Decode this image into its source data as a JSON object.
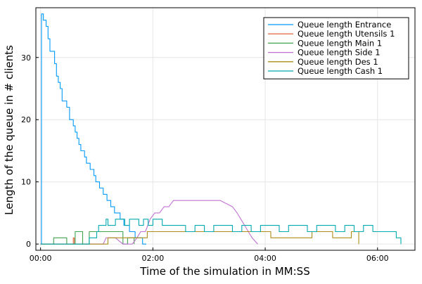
{
  "chart_data": {
    "type": "line",
    "title": "",
    "xlabel": "Time of the simulation in MM:SS",
    "ylabel": "Length of the queue in # clients",
    "x_unit": "seconds",
    "xlim": [
      -5,
      400
    ],
    "ylim": [
      -1,
      38
    ],
    "x_ticks": [
      {
        "value": 0,
        "label": "00:00"
      },
      {
        "value": 120,
        "label": "02:00"
      },
      {
        "value": 240,
        "label": "04:00"
      },
      {
        "value": 360,
        "label": "06:00"
      }
    ],
    "y_ticks": [
      {
        "value": 0,
        "label": "0"
      },
      {
        "value": 10,
        "label": "10"
      },
      {
        "value": 20,
        "label": "20"
      },
      {
        "value": 30,
        "label": "30"
      }
    ],
    "grid": true,
    "legend_position": "top-right",
    "series": [
      {
        "name": "Queue length Entrance",
        "color": "#009AFA",
        "step": true,
        "x": [
          0,
          1,
          3,
          6,
          8,
          10,
          13,
          15,
          17,
          19,
          21,
          23,
          25,
          28,
          31,
          33,
          35,
          37,
          39,
          41,
          43,
          45,
          47,
          49,
          51,
          53,
          55,
          57,
          59,
          61,
          63,
          65,
          67,
          69,
          71,
          73,
          75,
          77,
          79,
          81,
          83,
          85,
          87,
          89,
          91,
          93,
          95,
          97,
          99,
          101,
          103,
          105,
          107,
          109,
          111,
          113
        ],
        "y": [
          0,
          37,
          36,
          35,
          33,
          31,
          31,
          29,
          27,
          26,
          25,
          23,
          23,
          22,
          20,
          20,
          19,
          18,
          17,
          16,
          15,
          15,
          14,
          13,
          13,
          12,
          12,
          11,
          10,
          10,
          9,
          9,
          8,
          8,
          7,
          7,
          6,
          6,
          5,
          5,
          5,
          4,
          4,
          3,
          3,
          3,
          2,
          2,
          2,
          1,
          1,
          1,
          1,
          0,
          0,
          0
        ]
      },
      {
        "name": "Queue length Utensils 1",
        "color": "#E36F47",
        "step": true,
        "x": [
          0,
          35,
          36
        ],
        "y": [
          0,
          1,
          0
        ]
      },
      {
        "name": "Queue length Main 1",
        "color": "#3EA44E",
        "step": true,
        "x": [
          0,
          12,
          14,
          26,
          28,
          35,
          37,
          43,
          45,
          47,
          52,
          54,
          88,
          90,
          93,
          95,
          100
        ],
        "y": [
          0,
          0,
          1,
          1,
          0,
          0,
          2,
          2,
          0,
          0,
          2,
          2,
          0,
          0,
          1,
          1,
          0
        ]
      },
      {
        "name": "Queue length Side 1",
        "color": "#C271D2",
        "step": false,
        "x": [
          0,
          67,
          70,
          80,
          88,
          93,
          98,
          103,
          107,
          112,
          117,
          122,
          127,
          132,
          137,
          142,
          150,
          170,
          180,
          192,
          205,
          210,
          214,
          218,
          222,
          226,
          232
        ],
        "y": [
          0,
          0,
          1,
          1,
          0,
          0,
          0,
          1,
          2,
          2,
          4,
          5,
          5,
          6,
          6,
          7,
          7,
          7,
          7,
          7,
          6,
          5,
          4,
          3,
          2,
          1,
          0
        ]
      },
      {
        "name": "Queue length Des 1",
        "color": "#AC8D18",
        "step": true,
        "x": [
          0,
          70,
          72,
          112,
          114,
          244,
          246,
          288,
          290,
          310,
          312,
          330,
          332,
          340
        ],
        "y": [
          0,
          0,
          1,
          1,
          2,
          2,
          1,
          1,
          2,
          2,
          1,
          1,
          2,
          0
        ]
      },
      {
        "name": "Queue length Cash 1",
        "color": "#00A9AD",
        "step": true,
        "x": [
          0,
          50,
          52,
          60,
          62,
          70,
          72,
          80,
          85,
          90,
          95,
          100,
          105,
          110,
          115,
          120,
          125,
          130,
          135,
          140,
          145,
          155,
          165,
          175,
          185,
          195,
          205,
          215,
          225,
          235,
          245,
          255,
          265,
          275,
          285,
          295,
          305,
          315,
          325,
          335,
          345,
          355,
          365,
          375,
          380,
          385
        ],
        "y": [
          0,
          0,
          1,
          2,
          3,
          4,
          3,
          4,
          4,
          3,
          4,
          4,
          3,
          4,
          3,
          4,
          4,
          3,
          3,
          3,
          3,
          2,
          3,
          2,
          3,
          3,
          2,
          3,
          2,
          3,
          3,
          2,
          3,
          3,
          2,
          3,
          3,
          2,
          3,
          2,
          3,
          2,
          2,
          2,
          1,
          0
        ]
      }
    ]
  }
}
